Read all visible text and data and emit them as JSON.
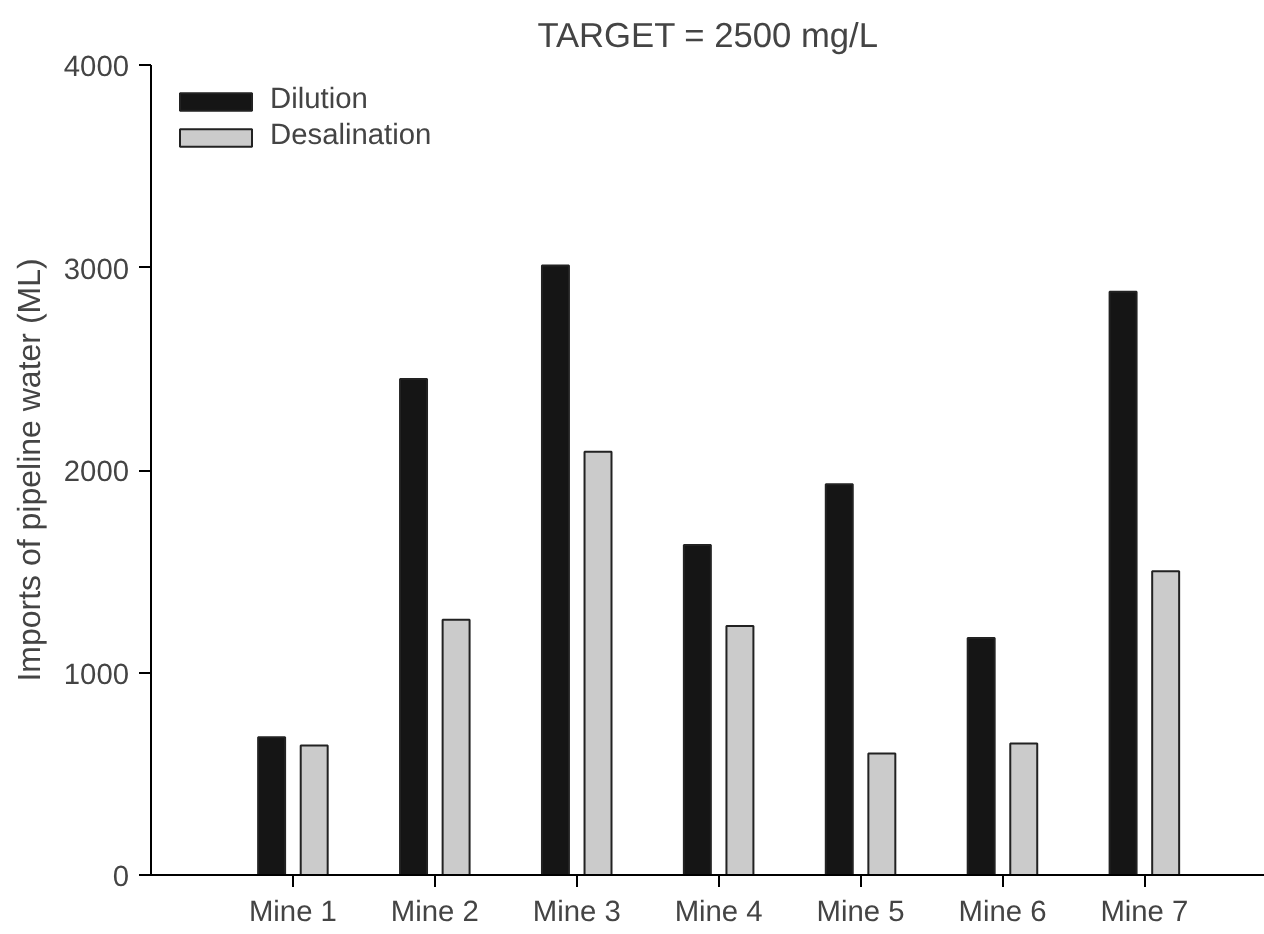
{
  "chart_data": {
    "type": "bar",
    "title": "TARGET = 2500 mg/L",
    "ylabel": "Imports of pipeline water (ML)",
    "categories": [
      "Mine 1",
      "Mine 2",
      "Mine 3",
      "Mine 4",
      "Mine 5",
      "Mine 6",
      "Mine 7"
    ],
    "series": [
      {
        "name": "Dilution",
        "color": "#151515",
        "values": [
          680,
          2450,
          3010,
          1630,
          1930,
          1170,
          2880
        ]
      },
      {
        "name": "Desalination",
        "color": "#cbcbcb",
        "values": [
          640,
          1260,
          2090,
          1230,
          600,
          650,
          1500
        ]
      }
    ],
    "ylim": [
      0,
      4000
    ],
    "yticks": [
      0,
      1000,
      2000,
      3000,
      4000
    ],
    "grid": false,
    "legend": "top left"
  }
}
